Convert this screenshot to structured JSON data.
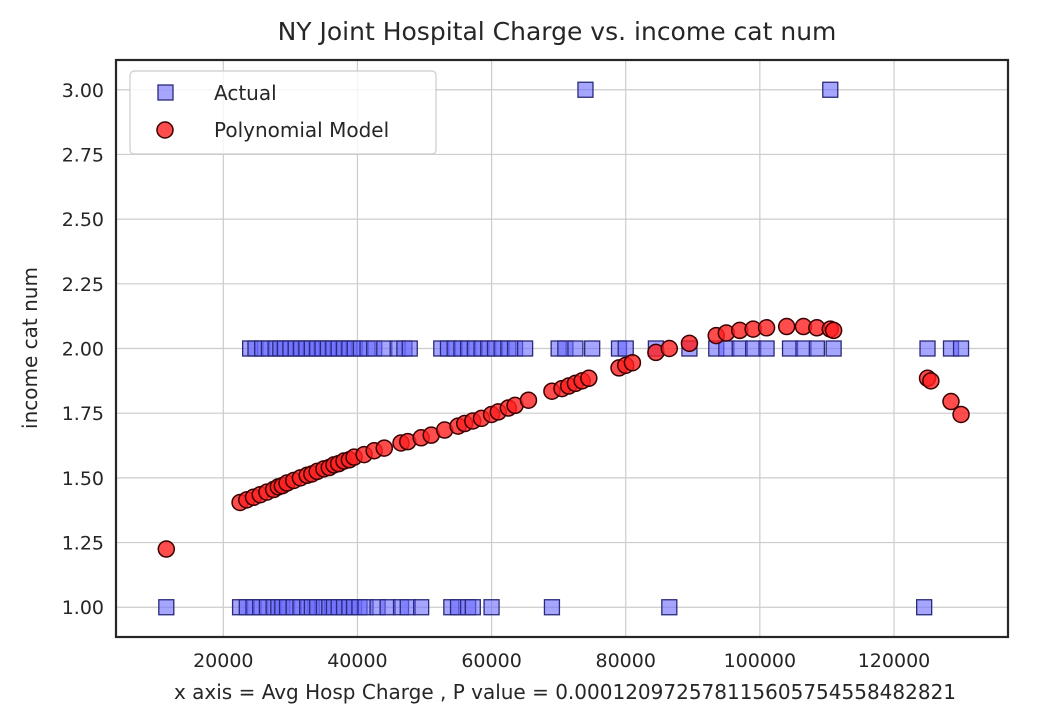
{
  "chart_data": {
    "type": "scatter",
    "title": "NY Joint Hospital Charge vs. income cat num",
    "xlabel": "x axis = Avg Hosp Charge , P value = 0.00012097257811560575455848282​1",
    "ylabel": "income cat num",
    "xlim": [
      4000,
      137000
    ],
    "ylim": [
      0.885,
      3.115
    ],
    "x_ticks": [
      20000,
      40000,
      60000,
      80000,
      100000,
      120000
    ],
    "x_tick_labels": [
      "20000",
      "40000",
      "60000",
      "80000",
      "100000",
      "120000"
    ],
    "y_ticks": [
      1.0,
      1.25,
      1.5,
      1.75,
      2.0,
      2.25,
      2.5,
      2.75,
      3.0
    ],
    "y_tick_labels": [
      "1.00",
      "1.25",
      "1.50",
      "1.75",
      "2.00",
      "2.25",
      "2.50",
      "2.75",
      "3.00"
    ],
    "grid": true,
    "legend_position": "top-left",
    "series": [
      {
        "name": "Actual",
        "marker": "square",
        "color": "#6b6bff",
        "edge": "#2a2a7a",
        "points": [
          [
            11500,
            1
          ],
          [
            22500,
            1
          ],
          [
            23500,
            1
          ],
          [
            24500,
            1
          ],
          [
            25500,
            1
          ],
          [
            26500,
            1
          ],
          [
            27500,
            1
          ],
          [
            28200,
            1
          ],
          [
            28800,
            1
          ],
          [
            29500,
            1
          ],
          [
            30500,
            1
          ],
          [
            31500,
            1
          ],
          [
            32500,
            1
          ],
          [
            33200,
            1
          ],
          [
            34000,
            1
          ],
          [
            35000,
            1
          ],
          [
            35800,
            1
          ],
          [
            36500,
            1
          ],
          [
            37200,
            1
          ],
          [
            38000,
            1
          ],
          [
            38800,
            1
          ],
          [
            39500,
            1
          ],
          [
            40300,
            1
          ],
          [
            41200,
            1
          ],
          [
            43000,
            1
          ],
          [
            44500,
            1
          ],
          [
            46500,
            1
          ],
          [
            47500,
            1
          ],
          [
            49500,
            1
          ],
          [
            54000,
            1
          ],
          [
            55000,
            1
          ],
          [
            56500,
            1
          ],
          [
            57200,
            1
          ],
          [
            60000,
            1
          ],
          [
            69000,
            1
          ],
          [
            86500,
            1
          ],
          [
            124500,
            1
          ],
          [
            24000,
            2
          ],
          [
            24800,
            2
          ],
          [
            25800,
            2
          ],
          [
            26800,
            2
          ],
          [
            27800,
            2
          ],
          [
            28500,
            2
          ],
          [
            29200,
            2
          ],
          [
            30000,
            2
          ],
          [
            30800,
            2
          ],
          [
            31600,
            2
          ],
          [
            32400,
            2
          ],
          [
            33200,
            2
          ],
          [
            34000,
            2
          ],
          [
            34800,
            2
          ],
          [
            35600,
            2
          ],
          [
            36400,
            2
          ],
          [
            37200,
            2
          ],
          [
            38000,
            2
          ],
          [
            38800,
            2
          ],
          [
            39600,
            2
          ],
          [
            40500,
            2
          ],
          [
            41500,
            2
          ],
          [
            42500,
            2
          ],
          [
            44000,
            2
          ],
          [
            46000,
            2
          ],
          [
            47000,
            2
          ],
          [
            47800,
            2
          ],
          [
            52500,
            2
          ],
          [
            53500,
            2
          ],
          [
            54500,
            2
          ],
          [
            55500,
            2
          ],
          [
            56500,
            2
          ],
          [
            57500,
            2
          ],
          [
            58500,
            2
          ],
          [
            59500,
            2
          ],
          [
            60500,
            2
          ],
          [
            61500,
            2
          ],
          [
            62500,
            2
          ],
          [
            63500,
            2
          ],
          [
            65000,
            2
          ],
          [
            70000,
            2
          ],
          [
            71000,
            2
          ],
          [
            72500,
            2
          ],
          [
            75000,
            2
          ],
          [
            79000,
            2
          ],
          [
            80000,
            2
          ],
          [
            84500,
            2
          ],
          [
            89500,
            2
          ],
          [
            93500,
            2
          ],
          [
            95000,
            2
          ],
          [
            97000,
            2
          ],
          [
            99000,
            2
          ],
          [
            101000,
            2
          ],
          [
            104500,
            2
          ],
          [
            106500,
            2
          ],
          [
            108500,
            2
          ],
          [
            111000,
            2
          ],
          [
            125000,
            2
          ],
          [
            128500,
            2
          ],
          [
            130000,
            2
          ],
          [
            74000,
            3
          ],
          [
            110500,
            3
          ]
        ]
      },
      {
        "name": "Polynomial Model",
        "marker": "circle",
        "color": "#ff2020",
        "edge": "#3a0000",
        "points": [
          [
            11500,
            1.225
          ],
          [
            22500,
            1.405
          ],
          [
            23500,
            1.415
          ],
          [
            24500,
            1.425
          ],
          [
            25500,
            1.435
          ],
          [
            26500,
            1.445
          ],
          [
            27500,
            1.455
          ],
          [
            28200,
            1.465
          ],
          [
            28800,
            1.47
          ],
          [
            29500,
            1.48
          ],
          [
            30500,
            1.49
          ],
          [
            31500,
            1.5
          ],
          [
            32500,
            1.51
          ],
          [
            33200,
            1.515
          ],
          [
            34000,
            1.525
          ],
          [
            35000,
            1.535
          ],
          [
            35800,
            1.54
          ],
          [
            36500,
            1.55
          ],
          [
            37200,
            1.555
          ],
          [
            38000,
            1.565
          ],
          [
            38800,
            1.57
          ],
          [
            39500,
            1.58
          ],
          [
            41000,
            1.59
          ],
          [
            42500,
            1.605
          ],
          [
            44000,
            1.615
          ],
          [
            46500,
            1.635
          ],
          [
            47500,
            1.64
          ],
          [
            49500,
            1.655
          ],
          [
            51000,
            1.665
          ],
          [
            53000,
            1.685
          ],
          [
            55000,
            1.7
          ],
          [
            56000,
            1.71
          ],
          [
            57200,
            1.72
          ],
          [
            58500,
            1.73
          ],
          [
            60000,
            1.745
          ],
          [
            61000,
            1.755
          ],
          [
            62500,
            1.77
          ],
          [
            63500,
            1.78
          ],
          [
            65500,
            1.8
          ],
          [
            69000,
            1.835
          ],
          [
            70500,
            1.845
          ],
          [
            71500,
            1.855
          ],
          [
            72500,
            1.865
          ],
          [
            73500,
            1.875
          ],
          [
            74500,
            1.885
          ],
          [
            79000,
            1.925
          ],
          [
            80000,
            1.935
          ],
          [
            81000,
            1.945
          ],
          [
            84500,
            1.985
          ],
          [
            86500,
            2.0
          ],
          [
            89500,
            2.02
          ],
          [
            93500,
            2.05
          ],
          [
            95000,
            2.06
          ],
          [
            97000,
            2.07
          ],
          [
            99000,
            2.075
          ],
          [
            101000,
            2.08
          ],
          [
            104000,
            2.085
          ],
          [
            106500,
            2.085
          ],
          [
            108500,
            2.08
          ],
          [
            110500,
            2.075
          ],
          [
            111000,
            2.07
          ],
          [
            125000,
            1.885
          ],
          [
            125500,
            1.875
          ],
          [
            128500,
            1.795
          ],
          [
            130000,
            1.745
          ]
        ]
      }
    ]
  }
}
